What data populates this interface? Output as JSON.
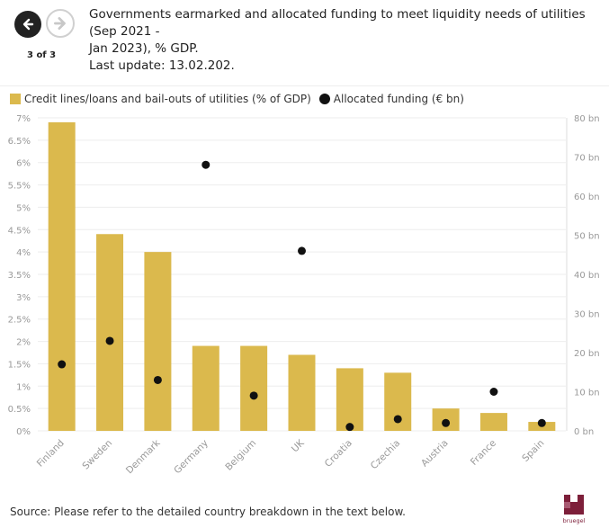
{
  "nav": {
    "prev_icon": "arrow-left-icon",
    "next_icon": "arrow-right-icon",
    "pager": "3 of 3"
  },
  "title_lines": [
    "Governments earmarked and allocated funding to meet liquidity needs of utilities (Sep 2021 -",
    "Jan 2023), % GDP.",
    "Last update: 13.02.202."
  ],
  "legend": {
    "bar_label": "Credit lines/loans and bail-outs of utilities (% of GDP)",
    "dot_label": "Allocated funding (€ bn)"
  },
  "colors": {
    "bar": "#dbb94d",
    "dot": "#111111"
  },
  "source": "Source: Please refer to the detailed country breakdown in the text below.",
  "logo_text": "bruegel",
  "chart_data": {
    "type": "bar",
    "categories": [
      "Finland",
      "Sweden",
      "Denmark",
      "Germany",
      "Belgium",
      "UK",
      "Croatia",
      "Czechia",
      "Austria",
      "France",
      "Spain"
    ],
    "series": [
      {
        "name": "Credit lines/loans and bail-outs of utilities (% of GDP)",
        "axis": "left",
        "kind": "bar",
        "values": [
          6.9,
          4.4,
          4.0,
          1.9,
          1.9,
          1.7,
          1.4,
          1.3,
          0.5,
          0.4,
          0.2
        ]
      },
      {
        "name": "Allocated funding (€ bn)",
        "axis": "right",
        "kind": "dot",
        "values": [
          17,
          23,
          13,
          68,
          9,
          46,
          1,
          3,
          2,
          10,
          2
        ]
      }
    ],
    "ylim_left": [
      0,
      7
    ],
    "yticks_left": [
      "0%",
      "0.5%",
      "1%",
      "1.5%",
      "2%",
      "2.5%",
      "3%",
      "3.5%",
      "4%",
      "4.5%",
      "5%",
      "5.5%",
      "6%",
      "6.5%",
      "7%"
    ],
    "ylim_right": [
      0,
      80
    ],
    "yticks_right": [
      "0 bn",
      "10 bn",
      "20 bn",
      "30 bn",
      "40 bn",
      "50 bn",
      "60 bn",
      "70 bn",
      "80 bn"
    ],
    "grid": true
  }
}
